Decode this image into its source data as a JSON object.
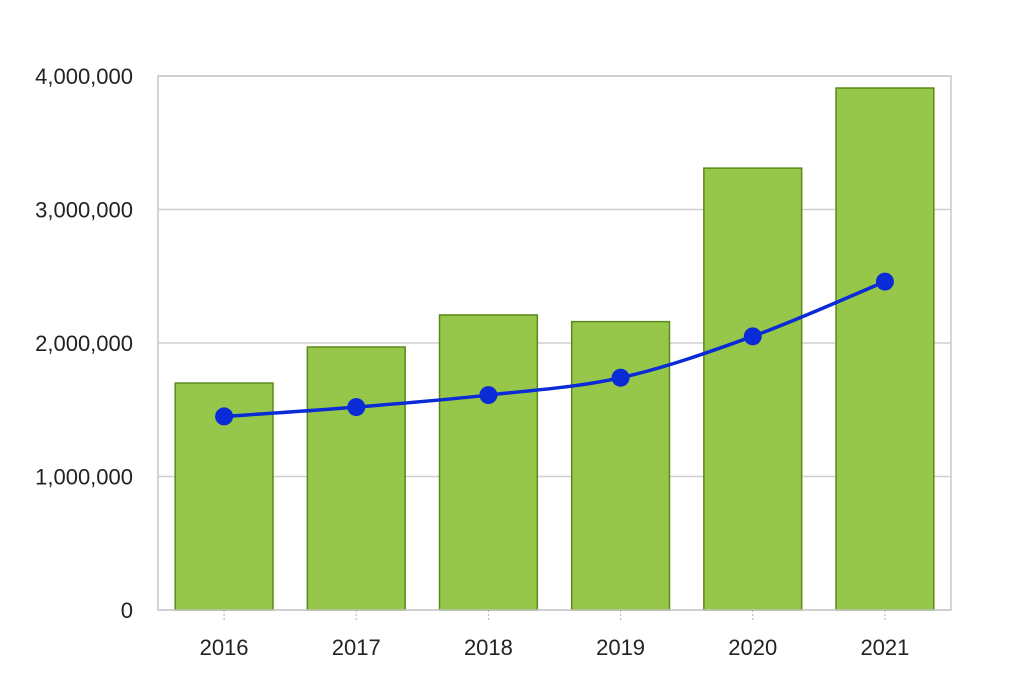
{
  "chart_data": {
    "type": "bar",
    "categories": [
      "2016",
      "2017",
      "2018",
      "2019",
      "2020",
      "2021"
    ],
    "series": [
      {
        "type": "bar",
        "values": [
          1700000,
          1970000,
          2210000,
          2160000,
          3310000,
          3910000
        ],
        "color": "#97C74A",
        "stroke": "#5A8A1A"
      },
      {
        "type": "line",
        "values": [
          1450000,
          1520000,
          1610000,
          1740000,
          2050000,
          2460000
        ],
        "color": "#0A2BD6",
        "marker_color": "#0A2BD6"
      }
    ],
    "y_ticks": [
      0,
      1000000,
      2000000,
      3000000,
      4000000
    ],
    "y_tick_labels": [
      "0",
      "1,000,000",
      "2,000,000",
      "3,000,000",
      "4,000,000"
    ],
    "ylim": [
      0,
      4000000
    ],
    "title": "",
    "xlabel": "",
    "ylabel": "",
    "grid": true,
    "legend": "none"
  }
}
